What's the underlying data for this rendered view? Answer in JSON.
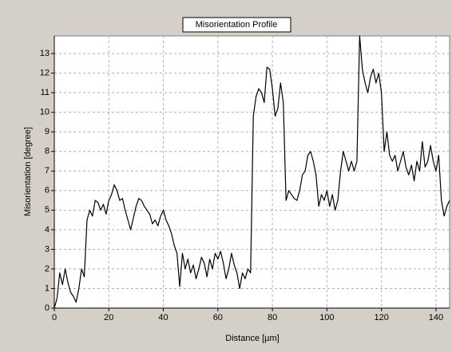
{
  "chart_data": {
    "type": "line",
    "title": "Misorientation Profile",
    "x_label": "Distance [µm]",
    "y_label": "Misorientation [degree]",
    "xlim": [
      0,
      145
    ],
    "ylim": [
      0,
      13.9
    ],
    "xticks": [
      0,
      20,
      40,
      60,
      80,
      100,
      120,
      140
    ],
    "yticks": [
      0,
      1,
      2,
      3,
      4,
      5,
      6,
      7,
      8,
      9,
      10,
      11,
      12,
      13
    ],
    "grid": true,
    "series": [
      {
        "color": "#000000",
        "x": [
          0,
          1,
          2,
          3,
          4,
          5,
          6,
          7,
          8,
          9,
          10,
          11,
          12,
          13,
          14,
          15,
          16,
          17,
          18,
          19,
          20,
          21,
          22,
          23,
          24,
          25,
          26,
          27,
          28,
          29,
          30,
          31,
          32,
          33,
          34,
          35,
          36,
          37,
          38,
          39,
          40,
          41,
          42,
          43,
          44,
          45,
          46,
          47,
          48,
          49,
          50,
          51,
          52,
          53,
          54,
          55,
          56,
          57,
          58,
          59,
          60,
          61,
          62,
          63,
          64,
          65,
          66,
          67,
          68,
          69,
          70,
          71,
          72,
          73,
          74,
          75,
          76,
          77,
          78,
          79,
          80,
          81,
          82,
          83,
          84,
          85,
          86,
          87,
          88,
          89,
          90,
          91,
          92,
          93,
          94,
          95,
          96,
          97,
          98,
          99,
          100,
          101,
          102,
          103,
          104,
          105,
          106,
          107,
          108,
          109,
          110,
          111,
          112,
          113,
          114,
          115,
          116,
          117,
          118,
          119,
          120,
          121,
          122,
          123,
          124,
          125,
          126,
          127,
          128,
          129,
          130,
          131,
          132,
          133,
          134,
          135,
          136,
          137,
          138,
          139,
          140,
          141,
          142,
          143,
          144,
          145
        ],
        "values": [
          0,
          0.5,
          1.8,
          1.2,
          2.0,
          1.3,
          0.8,
          0.6,
          0.3,
          1.0,
          2.0,
          1.6,
          4.5,
          5.0,
          4.7,
          5.5,
          5.4,
          5.0,
          5.3,
          4.8,
          5.5,
          5.8,
          6.3,
          6.0,
          5.5,
          5.6,
          5.0,
          4.5,
          4.0,
          4.6,
          5.2,
          5.6,
          5.5,
          5.2,
          5.0,
          4.8,
          4.3,
          4.5,
          4.2,
          4.7,
          5.0,
          4.5,
          4.2,
          3.8,
          3.2,
          2.8,
          1.1,
          2.8,
          2.0,
          2.5,
          1.8,
          2.2,
          1.5,
          2.0,
          2.6,
          2.3,
          1.6,
          2.5,
          2.0,
          2.8,
          2.5,
          2.9,
          2.3,
          1.5,
          2.0,
          2.8,
          2.2,
          1.8,
          1.0,
          1.8,
          1.5,
          2.0,
          1.8,
          9.8,
          10.8,
          11.2,
          11.0,
          10.5,
          12.3,
          12.2,
          11.2,
          9.8,
          10.2,
          11.5,
          10.5,
          5.5,
          6.0,
          5.8,
          5.6,
          5.5,
          6.0,
          6.8,
          7.0,
          7.8,
          8.0,
          7.5,
          6.8,
          5.2,
          5.8,
          5.5,
          6.0,
          5.2,
          5.8,
          5.0,
          5.5,
          7.0,
          8.0,
          7.5,
          7.0,
          7.5,
          7.0,
          7.5,
          13.9,
          12.2,
          11.5,
          11.0,
          11.8,
          12.2,
          11.5,
          12.0,
          11.0,
          8.0,
          9.0,
          7.8,
          7.5,
          7.8,
          7.0,
          7.5,
          8.0,
          7.2,
          6.8,
          7.3,
          6.5,
          7.5,
          7.0,
          8.5,
          7.2,
          7.5,
          8.3,
          7.5,
          7.0,
          7.8,
          5.5,
          4.7,
          5.2,
          5.5
        ]
      }
    ]
  }
}
